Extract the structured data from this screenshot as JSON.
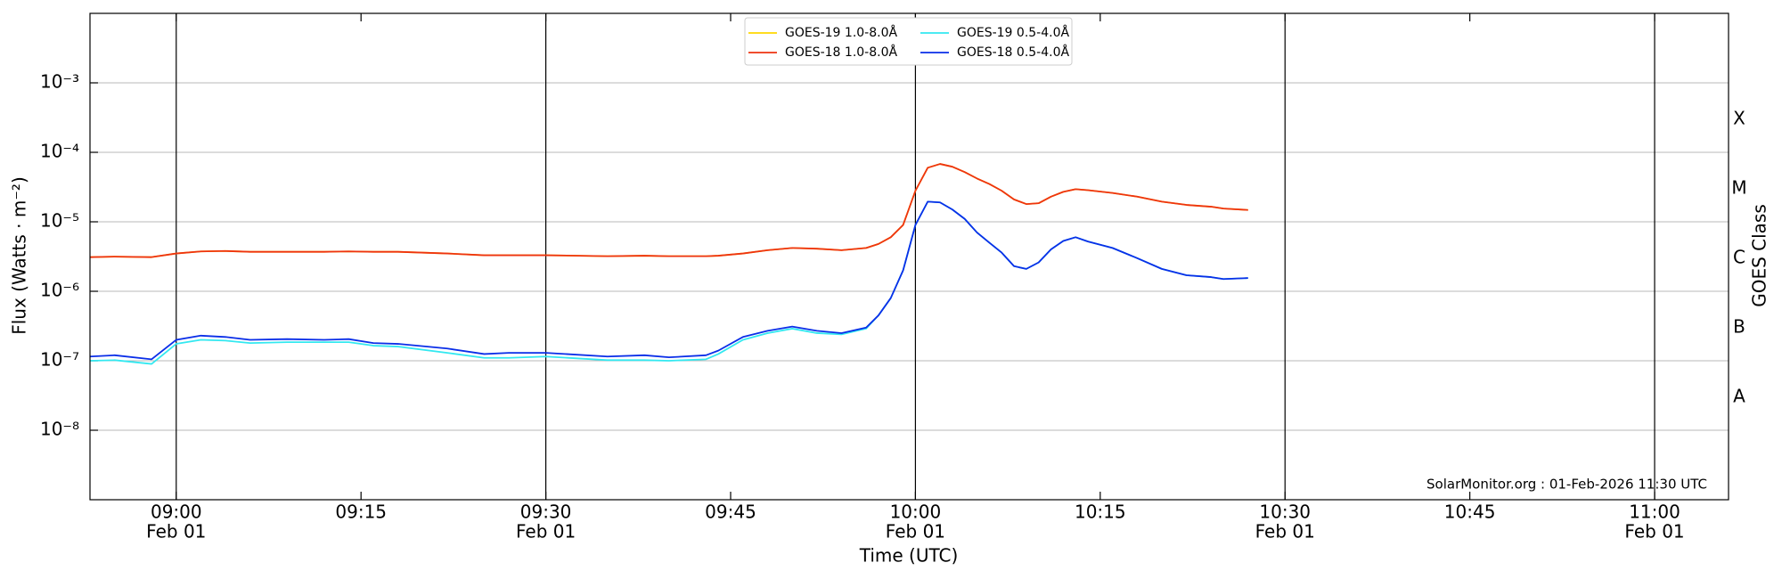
{
  "chart_data": {
    "type": "line",
    "y_label": "Flux (Watts · m⁻²)",
    "x_label": "Time (UTC)",
    "y2_label": "GOES Class",
    "annotation": "SolarMonitor.org : 01-Feb-2026 11:30 UTC",
    "yscale": "log",
    "grid": true,
    "legend_position": "upper center",
    "x": [
      "08:53",
      "08:55",
      "08:58",
      "09:00",
      "09:02",
      "09:04",
      "09:06",
      "09:09",
      "09:12",
      "09:14",
      "09:16",
      "09:18",
      "09:22",
      "09:25",
      "09:27",
      "09:30",
      "09:35",
      "09:38",
      "09:40",
      "09:43",
      "09:44",
      "09:46",
      "09:48",
      "09:50",
      "09:52",
      "09:54",
      "09:56",
      "09:57",
      "09:58",
      "09:59",
      "10:00",
      "10:01",
      "10:02",
      "10:03",
      "10:04",
      "10:05",
      "10:06",
      "10:07",
      "10:08",
      "10:09",
      "10:10",
      "10:11",
      "10:12",
      "10:13",
      "10:14",
      "10:16",
      "10:18",
      "10:20",
      "10:22",
      "10:24",
      "10:25",
      "10:27"
    ],
    "series": [
      {
        "name": "GOES-19 1.0-8.0Å",
        "color": "#ffd700",
        "values": [
          3.1e-06,
          3.15e-06,
          3.1e-06,
          3.5e-06,
          3.75e-06,
          3.8e-06,
          3.7e-06,
          3.7e-06,
          3.7e-06,
          3.75e-06,
          3.7e-06,
          3.7e-06,
          3.5e-06,
          3.3e-06,
          3.3e-06,
          3.3e-06,
          3.2e-06,
          3.25e-06,
          3.2e-06,
          3.2e-06,
          3.25e-06,
          3.5e-06,
          3.9e-06,
          4.2e-06,
          4.1e-06,
          3.9e-06,
          4.2e-06,
          4.8e-06,
          6e-06,
          9e-06,
          2.8e-05,
          6e-05,
          6.8e-05,
          6.2e-05,
          5.2e-05,
          4.2e-05,
          3.5e-05,
          2.8e-05,
          2.1e-05,
          1.8e-05,
          1.85e-05,
          2.3e-05,
          2.7e-05,
          2.95e-05,
          2.85e-05,
          2.6e-05,
          2.3e-05,
          1.95e-05,
          1.75e-05,
          1.65e-05,
          1.55e-05,
          1.48e-05
        ]
      },
      {
        "name": "GOES-18 1.0-8.0Å",
        "color": "#ee3311",
        "values": [
          3.1e-06,
          3.15e-06,
          3.1e-06,
          3.5e-06,
          3.75e-06,
          3.8e-06,
          3.7e-06,
          3.7e-06,
          3.7e-06,
          3.75e-06,
          3.7e-06,
          3.7e-06,
          3.5e-06,
          3.3e-06,
          3.3e-06,
          3.3e-06,
          3.2e-06,
          3.25e-06,
          3.2e-06,
          3.2e-06,
          3.25e-06,
          3.5e-06,
          3.9e-06,
          4.2e-06,
          4.1e-06,
          3.9e-06,
          4.2e-06,
          4.8e-06,
          6e-06,
          9e-06,
          2.8e-05,
          6e-05,
          6.8e-05,
          6.2e-05,
          5.2e-05,
          4.2e-05,
          3.5e-05,
          2.8e-05,
          2.1e-05,
          1.8e-05,
          1.85e-05,
          2.3e-05,
          2.7e-05,
          2.95e-05,
          2.85e-05,
          2.6e-05,
          2.3e-05,
          1.95e-05,
          1.75e-05,
          1.65e-05,
          1.55e-05,
          1.48e-05
        ]
      },
      {
        "name": "GOES-19 0.5-4.0Å",
        "color": "#33e8f0",
        "values": [
          1e-07,
          1.02e-07,
          9e-08,
          1.75e-07,
          2e-07,
          1.95e-07,
          1.8e-07,
          1.85e-07,
          1.85e-07,
          1.85e-07,
          1.65e-07,
          1.6e-07,
          1.3e-07,
          1.1e-07,
          1.1e-07,
          1.15e-07,
          1.02e-07,
          1.02e-07,
          1e-07,
          1.05e-07,
          1.25e-07,
          2e-07,
          2.5e-07,
          2.9e-07,
          2.5e-07,
          2.4e-07,
          2.9e-07,
          4.5e-07,
          8e-07,
          2e-06,
          9e-06,
          1.95e-05,
          1.9e-05,
          1.5e-05,
          1.1e-05,
          7e-06,
          5e-06,
          3.6e-06,
          2.3e-06,
          2.1e-06,
          2.6e-06,
          4e-06,
          5.3e-06,
          6e-06,
          5.2e-06,
          4.2e-06,
          3e-06,
          2.1e-06,
          1.7e-06,
          1.6e-06,
          1.5e-06,
          1.55e-06
        ]
      },
      {
        "name": "GOES-18 0.5-4.0Å",
        "color": "#0a2ee8",
        "values": [
          1.15e-07,
          1.2e-07,
          1.05e-07,
          2e-07,
          2.3e-07,
          2.2e-07,
          2e-07,
          2.05e-07,
          2e-07,
          2.05e-07,
          1.8e-07,
          1.75e-07,
          1.5e-07,
          1.25e-07,
          1.3e-07,
          1.3e-07,
          1.15e-07,
          1.2e-07,
          1.12e-07,
          1.2e-07,
          1.4e-07,
          2.2e-07,
          2.7e-07,
          3.1e-07,
          2.7e-07,
          2.5e-07,
          3e-07,
          4.5e-07,
          8e-07,
          2e-06,
          9e-06,
          1.95e-05,
          1.9e-05,
          1.5e-05,
          1.1e-05,
          7e-06,
          5e-06,
          3.6e-06,
          2.3e-06,
          2.1e-06,
          2.6e-06,
          4e-06,
          5.3e-06,
          6e-06,
          5.2e-06,
          4.2e-06,
          3e-06,
          2.1e-06,
          1.7e-06,
          1.6e-06,
          1.5e-06,
          1.55e-06
        ]
      }
    ],
    "xlim": [
      "08:53",
      "11:06"
    ],
    "xticks": [
      "09:00",
      "09:15",
      "09:30",
      "09:45",
      "10:00",
      "10:15",
      "10:30",
      "10:45",
      "11:00"
    ],
    "xtick_dates": [
      "Feb 01",
      null,
      "Feb 01",
      null,
      "Feb 01",
      null,
      "Feb 01",
      null,
      "Feb 01"
    ],
    "ylim": [
      1e-09,
      0.01
    ],
    "yticks": [
      {
        "value": 1e-08,
        "label": "10⁻⁸"
      },
      {
        "value": 1e-07,
        "label": "10⁻⁷"
      },
      {
        "value": 1e-06,
        "label": "10⁻⁶"
      },
      {
        "value": 1e-05,
        "label": "10⁻⁵"
      },
      {
        "value": 0.0001,
        "label": "10⁻⁴"
      },
      {
        "value": 0.001,
        "label": "10⁻³"
      }
    ],
    "y2lim": [
      1e-09,
      0.01
    ],
    "y2ticks": [
      {
        "value": 3e-08,
        "label": "A"
      },
      {
        "value": 3e-07,
        "label": "B"
      },
      {
        "value": 3e-06,
        "label": "C"
      },
      {
        "value": 3e-05,
        "label": "M"
      },
      {
        "value": 0.0003,
        "label": "X"
      }
    ]
  }
}
